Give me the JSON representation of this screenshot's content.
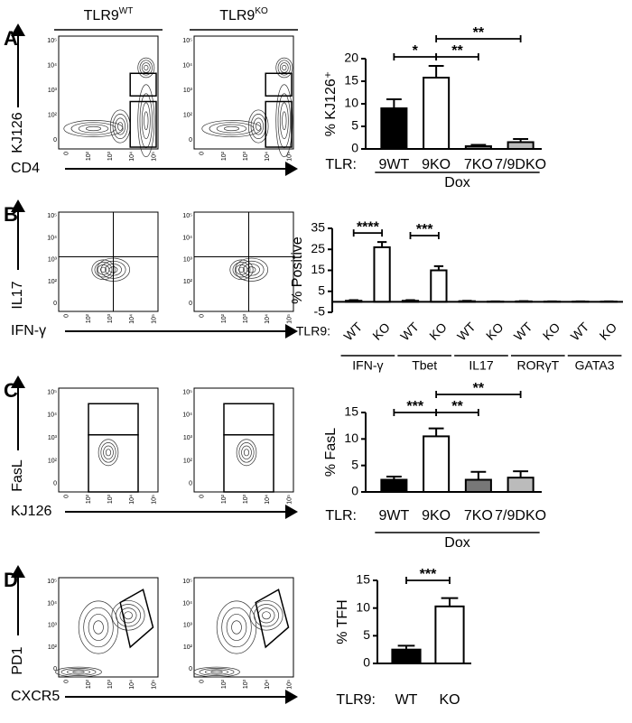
{
  "columns": [
    {
      "base": "TLR9",
      "sup": "WT"
    },
    {
      "base": "TLR9",
      "sup": "KO"
    }
  ],
  "flow_ticks": [
    "0",
    "10²",
    "10³",
    "10⁴",
    "10⁵"
  ],
  "panels": [
    {
      "letter": "A",
      "x_label": "CD4",
      "y_label": "KJ126"
    },
    {
      "letter": "B",
      "x_label": "IFN-γ",
      "y_label": "IL17"
    },
    {
      "letter": "C",
      "x_label": "KJ126",
      "y_label": "FasL"
    },
    {
      "letter": "D",
      "x_label": "CXCR5",
      "y_label": "PD1"
    }
  ],
  "chart_data": [
    {
      "type": "bar",
      "ylabel": "% KJ126⁺",
      "prefix": "TLR:",
      "categories": [
        "9WT",
        "9KO",
        "7KO",
        "7/9DKO"
      ],
      "category_groups": [
        "Dox",
        "Dox",
        "Dox",
        "Dox"
      ],
      "values": [
        9,
        15.8,
        0.6,
        1.5
      ],
      "errors": [
        2,
        2.6,
        0.3,
        0.7
      ],
      "colors": [
        "#000000",
        "#ffffff",
        "#777777",
        "#bbbbbb"
      ],
      "ylim": [
        0,
        20
      ],
      "yticks": [
        0,
        5,
        10,
        15,
        20
      ],
      "significance": [
        {
          "between": [
            "9WT",
            "9KO"
          ],
          "label": "*"
        },
        {
          "between": [
            "9KO",
            "7KO"
          ],
          "label": "**"
        },
        {
          "between": [
            "9KO",
            "7/9DKO"
          ],
          "label": "**"
        }
      ]
    },
    {
      "type": "bar",
      "ylabel": "% Positive",
      "prefix": "TLR9:",
      "categories": [
        "WT",
        "KO",
        "WT",
        "KO",
        "WT",
        "KO",
        "WT",
        "KO",
        "WT",
        "KO"
      ],
      "category_groups": [
        "IFN-γ",
        "IFN-γ",
        "Tbet",
        "Tbet",
        "IL17",
        "IL17",
        "RORγT",
        "RORγT",
        "GATA3",
        "GATA3"
      ],
      "values": [
        0.5,
        26,
        0.5,
        15,
        0.3,
        0.1,
        0.2,
        0.1,
        0.1,
        0.1
      ],
      "errors": [
        0.3,
        2.5,
        0.3,
        2,
        0.2,
        0.1,
        0.1,
        0.1,
        0.1,
        0.1
      ],
      "colors": [
        "#ffffff",
        "#ffffff",
        "#ffffff",
        "#ffffff",
        "#ffffff",
        "#ffffff",
        "#ffffff",
        "#ffffff",
        "#ffffff",
        "#ffffff"
      ],
      "ylim": [
        -5,
        35
      ],
      "yticks": [
        -5,
        5,
        15,
        25,
        35
      ],
      "significance": [
        {
          "between": [
            0,
            1
          ],
          "label": "****"
        },
        {
          "between": [
            2,
            3
          ],
          "label": "***"
        }
      ]
    },
    {
      "type": "bar",
      "ylabel": "% FasL",
      "prefix": "TLR:",
      "categories": [
        "9WT",
        "9KO",
        "7KO",
        "7/9DKO"
      ],
      "category_groups": [
        "Dox",
        "Dox",
        "Dox",
        "Dox"
      ],
      "values": [
        2.3,
        10.5,
        2.3,
        2.7
      ],
      "errors": [
        0.6,
        1.5,
        1.5,
        1.2
      ],
      "colors": [
        "#000000",
        "#ffffff",
        "#777777",
        "#bbbbbb"
      ],
      "ylim": [
        0,
        15
      ],
      "yticks": [
        0,
        5,
        10,
        15
      ],
      "significance": [
        {
          "between": [
            "9WT",
            "9KO"
          ],
          "label": "***"
        },
        {
          "between": [
            "9KO",
            "7KO"
          ],
          "label": "**"
        },
        {
          "between": [
            "9KO",
            "7/9DKO"
          ],
          "label": "**"
        }
      ]
    },
    {
      "type": "bar",
      "ylabel": "% TFH",
      "prefix": "TLR9:",
      "categories": [
        "WT",
        "KO"
      ],
      "values": [
        2.5,
        10.3
      ],
      "errors": [
        0.7,
        1.5
      ],
      "colors": [
        "#000000",
        "#ffffff"
      ],
      "ylim": [
        0,
        15
      ],
      "yticks": [
        0,
        5,
        10,
        15
      ],
      "significance": [
        {
          "between": [
            "WT",
            "KO"
          ],
          "label": "***"
        }
      ]
    }
  ]
}
